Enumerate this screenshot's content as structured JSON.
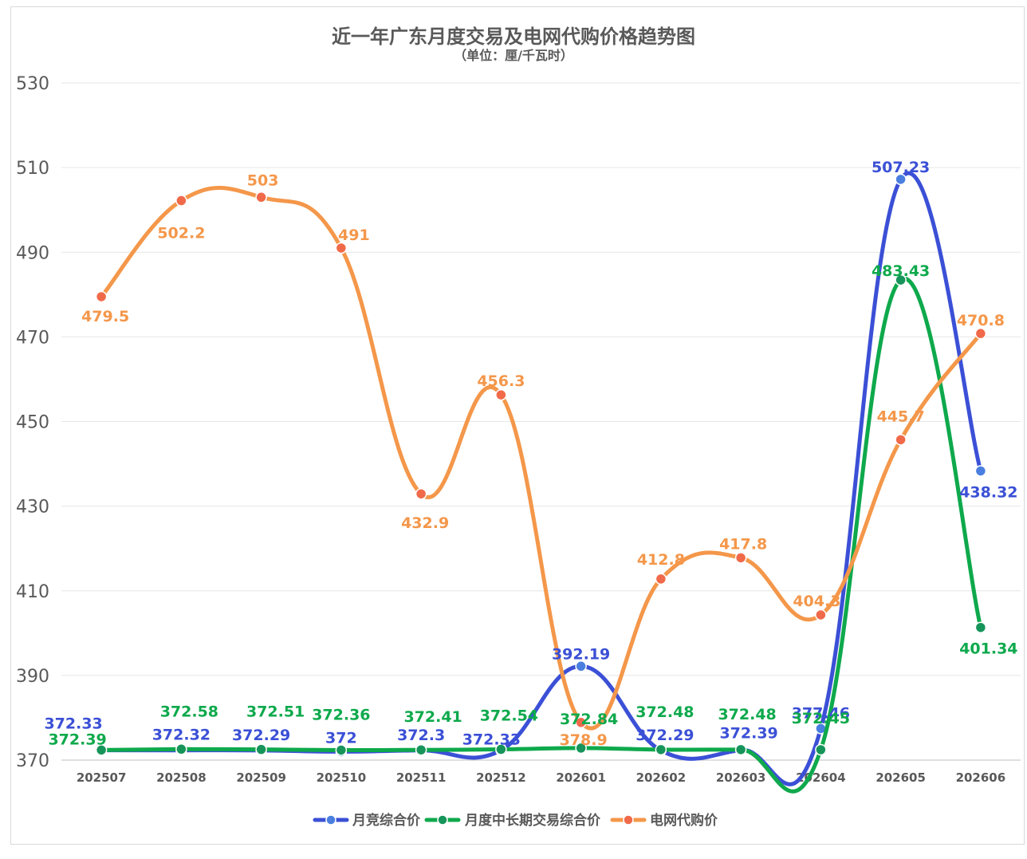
{
  "chart_data": {
    "type": "line",
    "title": "近一年广东月度交易及电网代购价格趋势图",
    "subtitle": "（单位：厘/千瓦时）",
    "categories": [
      "202507",
      "202508",
      "202509",
      "202510",
      "202511",
      "202512",
      "202601",
      "202602",
      "202603",
      "202604",
      "202605",
      "202606"
    ],
    "ylim": [
      370,
      530
    ],
    "yticks": [
      370,
      390,
      410,
      430,
      450,
      470,
      490,
      510,
      530
    ],
    "grid": true,
    "smooth": true,
    "legend_position": "bottom",
    "series": [
      {
        "name": "月竞综合价",
        "color": "#3b50d6",
        "values": [
          372.33,
          372.32,
          372.29,
          372,
          372.3,
          372.33,
          392.19,
          372.29,
          372.39,
          377.46,
          507.23,
          438.32
        ],
        "labels": [
          "372.33",
          "372.32",
          "372.29",
          "372",
          "372.3",
          "372.33",
          "392.19",
          "372.29",
          "372.39",
          "377.46",
          "507.23",
          "438.32"
        ]
      },
      {
        "name": "月度中长期交易综合价",
        "color": "#0ea94c",
        "values": [
          372.39,
          372.58,
          372.51,
          372.36,
          372.41,
          372.54,
          372.84,
          372.48,
          372.48,
          372.45,
          483.43,
          401.34
        ],
        "labels": [
          "372.39",
          "372.58",
          "372.51",
          "372.36",
          "372.41",
          "372.54",
          "372.84",
          "372.48",
          "372.48",
          "372.45",
          "483.43",
          "401.34"
        ]
      },
      {
        "name": "电网代购价",
        "color": "#f4974a",
        "values": [
          479.5,
          502.2,
          503,
          491,
          432.9,
          456.3,
          378.9,
          412.8,
          417.8,
          404.3,
          445.7,
          470.8
        ],
        "labels": [
          "479.5",
          "502.2",
          "503",
          "491",
          "432.9",
          "456.3",
          "378.9",
          "412.8",
          "417.8",
          "404.3",
          "445.7",
          "470.8"
        ]
      }
    ]
  }
}
